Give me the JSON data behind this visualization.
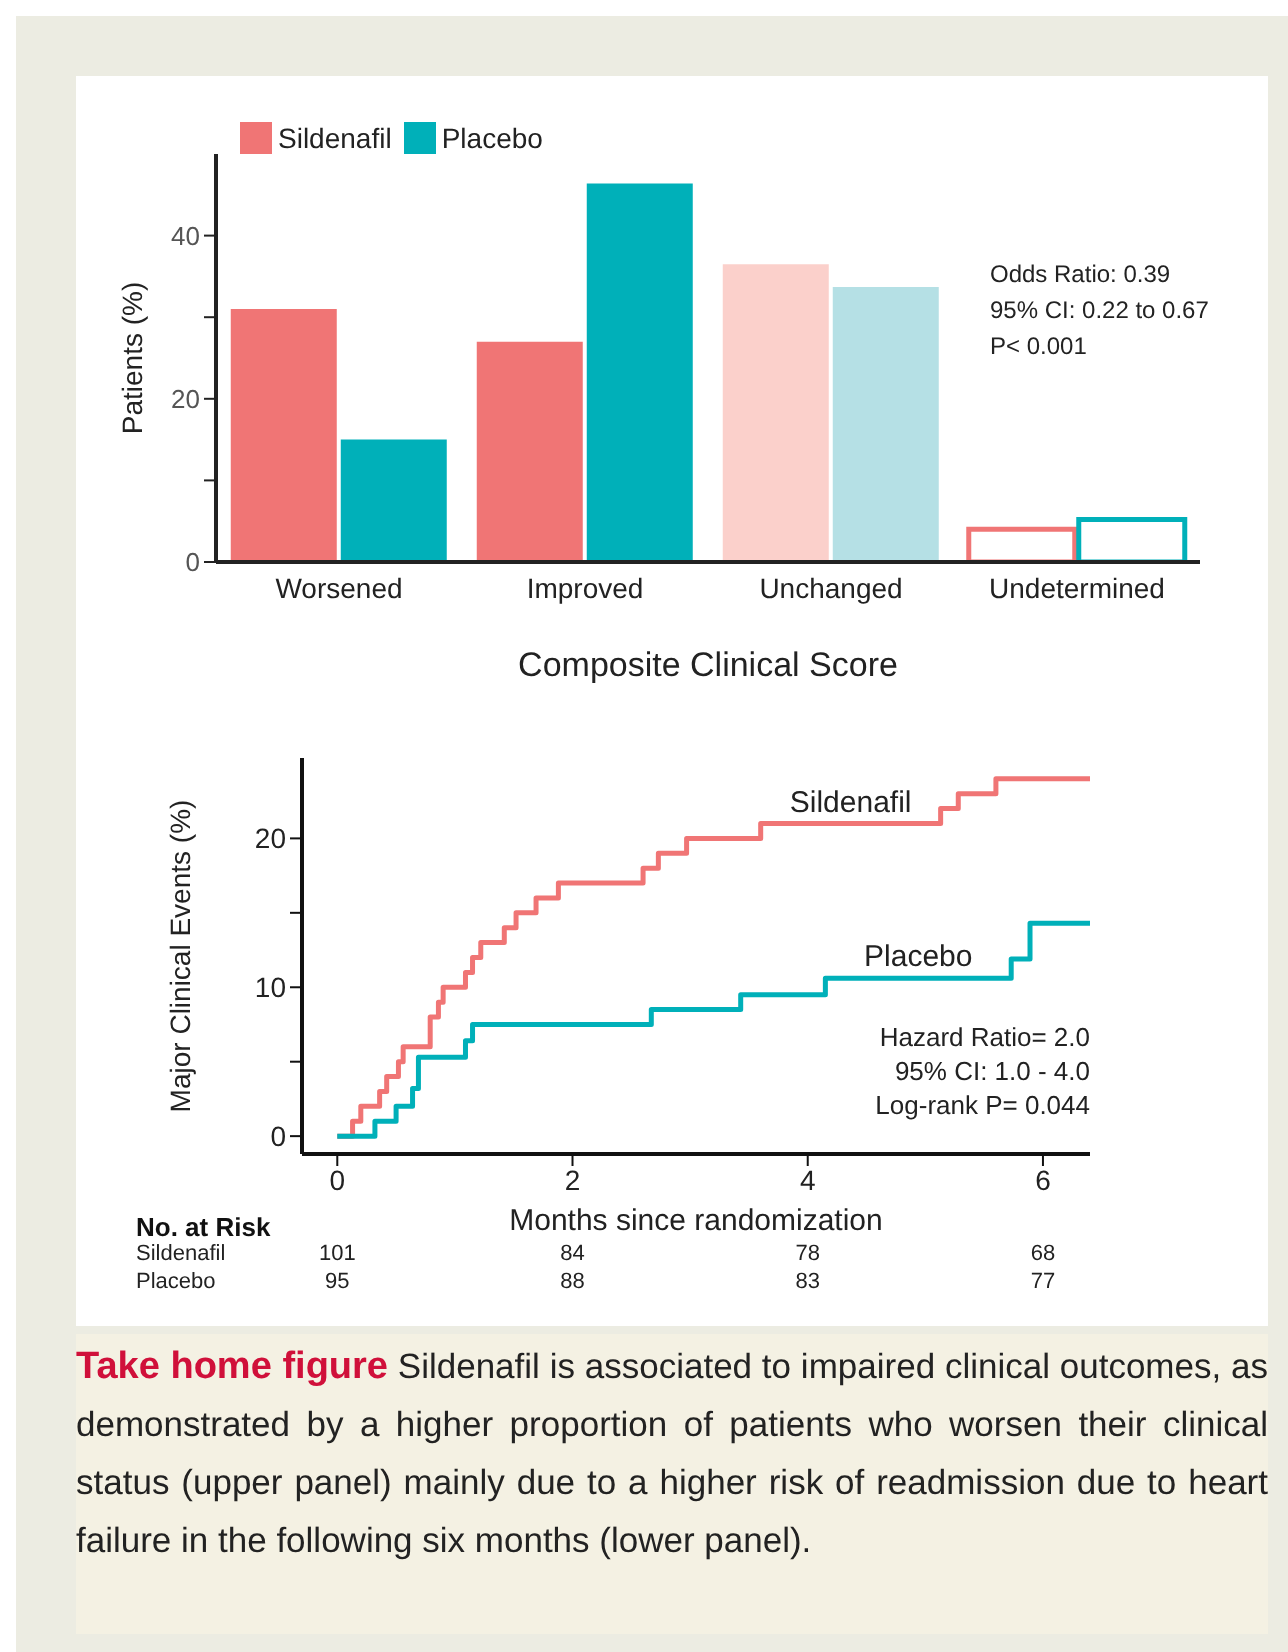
{
  "chart_data": [
    {
      "type": "bar",
      "categories": [
        "Worsened",
        "Improved",
        "Unchanged",
        "Undetermined"
      ],
      "xlabel": "Composite Clinical Score",
      "ylabel": "Patients (%)",
      "ylim": [
        0,
        50
      ],
      "yticks": [
        0,
        {
          "value": 10,
          "label": null
        },
        20,
        {
          "value": 30,
          "label": null
        },
        40
      ],
      "legend": "top left",
      "series": [
        {
          "name": "Sildenafil",
          "color": "#f07575",
          "colors": [
            "#f07575",
            "#f07575",
            "#fbd0cb",
            "#ffffff"
          ],
          "values": [
            31,
            27,
            36.5,
            4
          ]
        },
        {
          "name": "Placebo",
          "color": "#00b0b9",
          "colors": [
            "#00b0b9",
            "#00b0b9",
            "#b5e0e5",
            "#ffffff"
          ],
          "values": [
            15,
            46.4,
            33.7,
            5.2
          ]
        }
      ],
      "annotations": [
        "Odds Ratio: 0.39",
        "95% CI: 0.22 to 0.67",
        "P< 0.001"
      ]
    },
    {
      "type": "step",
      "xlabel": "Months since randomization",
      "ylabel": "Major Clinical Events (%)",
      "xlim": [
        -0.3,
        6.4
      ],
      "xticks": [
        0,
        2,
        4,
        6
      ],
      "ylim": [
        -1.2,
        25.4
      ],
      "yticks": [
        0,
        {
          "value": 5,
          "label": null
        },
        10,
        {
          "value": 15,
          "label": null
        },
        20
      ],
      "series": [
        {
          "name": "Sildenafil",
          "color": "#f07575",
          "x": [
            0,
            0.13,
            0.2,
            0.36,
            0.42,
            0.52,
            0.56,
            0.79,
            0.86,
            0.9,
            1.09,
            1.15,
            1.22,
            1.42,
            1.52,
            1.69,
            1.88,
            2.6,
            2.73,
            2.97,
            3.6,
            5.13,
            5.28,
            5.6,
            6.4
          ],
          "values": [
            0,
            1,
            2,
            3,
            4,
            5,
            6,
            8,
            9,
            10,
            11,
            12,
            13,
            14,
            15,
            16,
            17,
            18,
            19,
            20,
            21,
            22,
            23,
            24,
            24
          ]
        },
        {
          "name": "Placebo",
          "color": "#00b0b9",
          "x": [
            0,
            0.32,
            0.5,
            0.64,
            0.69,
            1.09,
            1.15,
            2.67,
            3.43,
            4.15,
            5.73,
            5.89,
            6.4
          ],
          "values": [
            0,
            1,
            2,
            3.2,
            5.3,
            6.4,
            7.5,
            8.5,
            9.5,
            10.6,
            11.9,
            14.3,
            14.3
          ]
        }
      ],
      "annotations": [
        "Hazard Ratio= 2.0",
        "95% CI: 1.0 - 4.0",
        "Log-rank P= 0.044",
        "No. at Risk",
        "Sildenafil",
        "101",
        "84",
        "78",
        "68",
        "Placebo",
        "95",
        "88",
        "83",
        "77",
        "Take home figure",
        "Sildenafil is associated to impaired clinical outcomes, as demonstrated by a higher proportion of patients who worsen their clinical status (upper panel) mainly due to a higher risk of readmission due to heart failure in the following six months (lower panel)."
      ]
    }
  ]
}
